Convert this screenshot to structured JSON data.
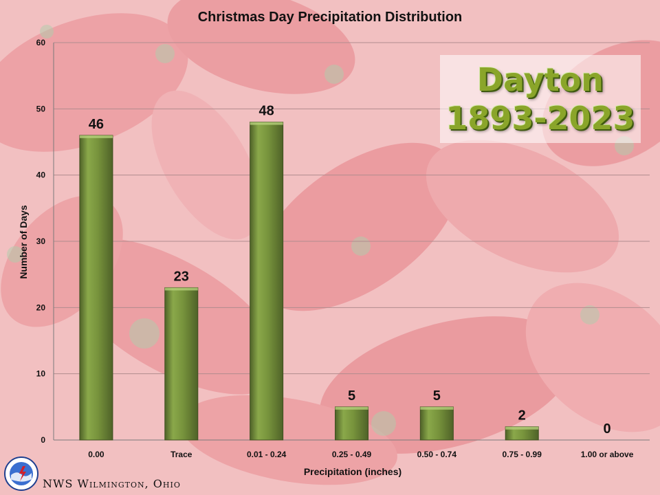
{
  "colors": {
    "bar_fill": "#77933c",
    "bar_dark": "#4f6228",
    "bar_light": "#9bbb59",
    "overlay_text": "#8aa52a",
    "background_red": "#e98a8e",
    "background_pink": "#f7d5d6"
  },
  "overlay": {
    "line1": "Dayton",
    "line2": "1893-2023"
  },
  "footer": {
    "text": "NWS Wilmington, Ohio",
    "logo_icon": "nws-logo-icon"
  },
  "chart_data": {
    "type": "bar",
    "title": "Christmas Day Precipitation Distribution",
    "xlabel": "Precipitation (inches)",
    "ylabel": "Number of Days",
    "categories": [
      "0.00",
      "Trace",
      "0.01 - 0.24",
      "0.25 - 0.49",
      "0.50 - 0.74",
      "0.75 - 0.99",
      "1.00 or above"
    ],
    "values": [
      46,
      23,
      48,
      5,
      5,
      2,
      0
    ],
    "ylim": [
      0,
      60
    ],
    "yticks": [
      0,
      10,
      20,
      30,
      40,
      50,
      60
    ],
    "grid": true,
    "data_labels": true,
    "legend": false
  }
}
